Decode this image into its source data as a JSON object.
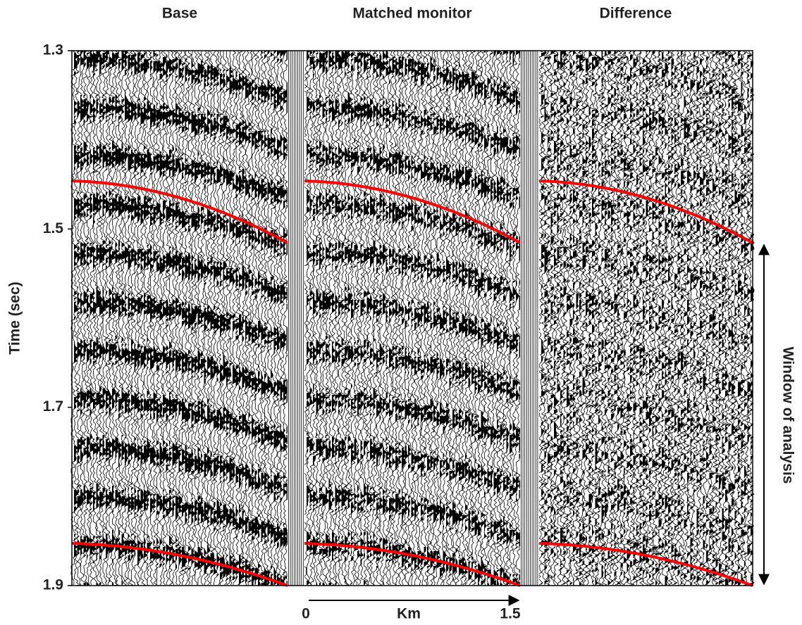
{
  "panels": [
    {
      "title": "Base"
    },
    {
      "title": "Matched monitor"
    },
    {
      "title": "Difference"
    }
  ],
  "y_axis": {
    "label": "Time (sec)",
    "lim": [
      1.3,
      1.9
    ],
    "ticks": [
      1.3,
      1.5,
      1.7,
      1.9
    ]
  },
  "scale_bar": {
    "start": 0,
    "unit": "Km",
    "end": 1.5
  },
  "annotation": "Window of analysis"
}
